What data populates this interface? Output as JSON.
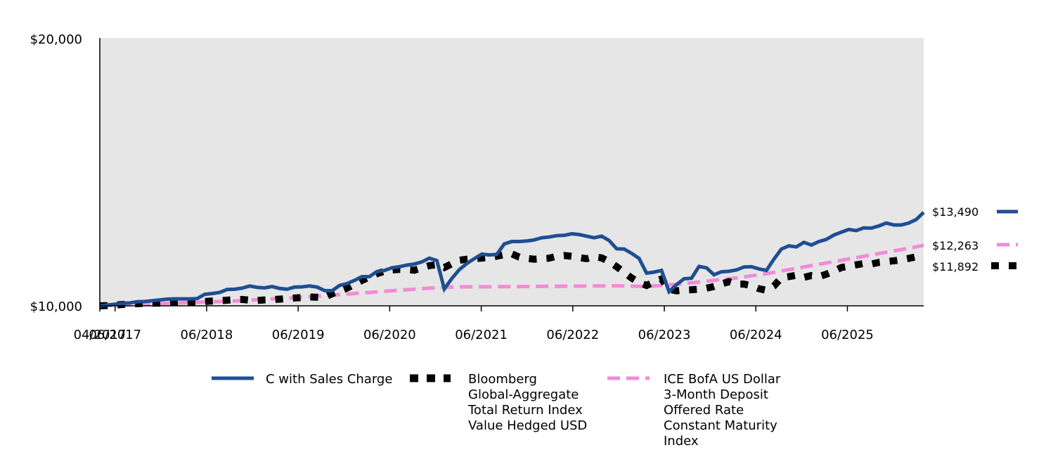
{
  "chart_data": {
    "type": "line",
    "title": "",
    "xlabel": "",
    "ylabel": "",
    "ylim": [
      10000,
      20000
    ],
    "y_ticks": [
      "$10,000",
      "$20,000"
    ],
    "x_ticks": [
      "04/2017",
      "06/2017",
      "06/2018",
      "06/2019",
      "06/2020",
      "06/2021",
      "06/2022",
      "06/2023",
      "06/2024",
      "06/2025"
    ],
    "x_tick_months": [
      0,
      2,
      14,
      26,
      38,
      50,
      62,
      74,
      86,
      98
    ],
    "months": 108,
    "series": [
      {
        "name": "C with Sales Charge",
        "color": "#1f4e93",
        "dash": "solid",
        "end_label": "$13,490",
        "values": [
          10000,
          10030,
          10060,
          10090,
          10110,
          10150,
          10160,
          10190,
          10220,
          10250,
          10260,
          10260,
          10260,
          10270,
          10430,
          10460,
          10500,
          10610,
          10620,
          10660,
          10740,
          10690,
          10670,
          10720,
          10650,
          10620,
          10700,
          10710,
          10740,
          10700,
          10570,
          10560,
          10760,
          10830,
          10950,
          11090,
          11090,
          11280,
          11320,
          11420,
          11460,
          11520,
          11560,
          11640,
          11780,
          11690,
          10630,
          11020,
          11350,
          11580,
          11760,
          11930,
          11900,
          11920,
          12310,
          12400,
          12400,
          12420,
          12460,
          12540,
          12570,
          12620,
          12630,
          12690,
          12660,
          12600,
          12540,
          12600,
          12440,
          12130,
          12120,
          11960,
          11770,
          11220,
          11260,
          11320,
          10530,
          10790,
          11010,
          11030,
          11470,
          11420,
          11160,
          11270,
          11290,
          11340,
          11450,
          11460,
          11380,
          11320,
          11740,
          12120,
          12240,
          12200,
          12370,
          12270,
          12400,
          12480,
          12640,
          12750,
          12850,
          12810,
          12910,
          12900,
          12980,
          13090,
          13020,
          13020,
          13090,
          13220,
          13490
        ]
      },
      {
        "name": "Bloomberg Global-Aggregate Total Return Index Value Hedged USD",
        "color": "#000000",
        "dash": "dotted",
        "end_label": "$11,892",
        "values": [
          10000,
          10010,
          10030,
          10050,
          10060,
          10080,
          10090,
          10100,
          10100,
          10110,
          10120,
          10130,
          10140,
          10150,
          10160,
          10180,
          10190,
          10210,
          10230,
          10240,
          10210,
          10200,
          10220,
          10230,
          10250,
          10270,
          10290,
          10310,
          10330,
          10320,
          10320,
          10450,
          10550,
          10660,
          10800,
          10950,
          11070,
          11200,
          11290,
          11340,
          11360,
          11350,
          11330,
          11420,
          11500,
          11540,
          11430,
          11570,
          11700,
          11740,
          11760,
          11780,
          11810,
          11850,
          11910,
          11940,
          11820,
          11770,
          11740,
          11760,
          11780,
          11850,
          11880,
          11850,
          11800,
          11760,
          11830,
          11790,
          11650,
          11460,
          11250,
          11040,
          10870,
          10760,
          10890,
          11000,
          10620,
          10560,
          10590,
          10600,
          10620,
          10660,
          10720,
          10820,
          10900,
          10810,
          10810,
          10750,
          10640,
          10580,
          10740,
          11050,
          11090,
          11140,
          11060,
          11130,
          11090,
          11180,
          11290,
          11430,
          11480,
          11530,
          11580,
          11560,
          11620,
          11650,
          11680,
          11720,
          11770,
          11830,
          11892
        ]
      },
      {
        "name": "ICE BofA US Dollar 3-Month Deposit Offered Rate Constant Maturity Index",
        "color": "#f28bd6",
        "dash": "dashed",
        "end_label": "$12,263",
        "values": [
          10000,
          10010,
          10020,
          10030,
          10040,
          10050,
          10060,
          10070,
          10080,
          10090,
          10100,
          10110,
          10120,
          10130,
          10140,
          10150,
          10160,
          10170,
          10180,
          10195,
          10210,
          10225,
          10240,
          10255,
          10270,
          10285,
          10300,
          10320,
          10340,
          10360,
          10380,
          10400,
          10420,
          10440,
          10460,
          10480,
          10500,
          10520,
          10540,
          10560,
          10580,
          10600,
          10620,
          10640,
          10660,
          10680,
          10690,
          10700,
          10705,
          10710,
          10710,
          10710,
          10712,
          10714,
          10716,
          10718,
          10720,
          10722,
          10724,
          10726,
          10728,
          10730,
          10732,
          10734,
          10736,
          10738,
          10740,
          10742,
          10744,
          10746,
          10740,
          10735,
          10730,
          10730,
          10740,
          10760,
          10780,
          10800,
          10830,
          10860,
          10890,
          10920,
          10950,
          10980,
          11010,
          11040,
          11080,
          11120,
          11160,
          11200,
          11250,
          11300,
          11350,
          11400,
          11450,
          11500,
          11550,
          11600,
          11650,
          11700,
          11750,
          11800,
          11850,
          11900,
          11950,
          12000,
          12050,
          12100,
          12150,
          12200,
          12263
        ]
      }
    ]
  },
  "legend": [
    {
      "lines": [
        "C with Sales Charge"
      ]
    },
    {
      "lines": [
        "Bloomberg",
        "Global-Aggregate",
        "Total Return Index",
        "Value Hedged USD"
      ]
    },
    {
      "lines": [
        "ICE BofA US Dollar",
        "3-Month Deposit",
        "Offered Rate",
        "Constant Maturity",
        "Index"
      ]
    }
  ],
  "colors": {
    "plot_background": "#e6e6e6"
  }
}
